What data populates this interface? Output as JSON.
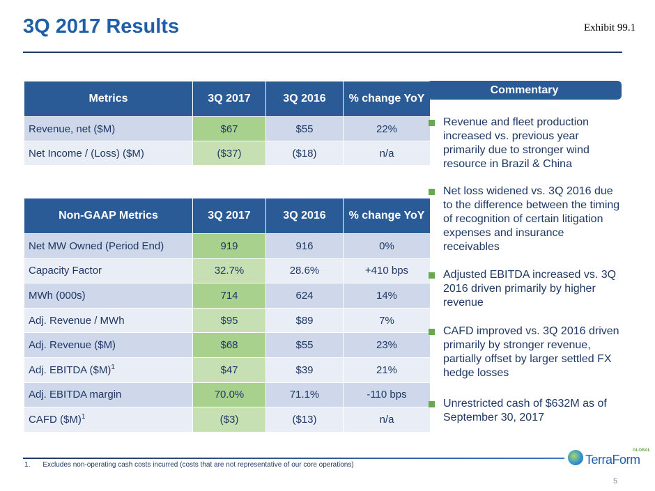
{
  "header": {
    "title": "3Q 2017 Results",
    "exhibit": "Exhibit 99.1"
  },
  "table1": {
    "header": [
      "Metrics",
      "3Q 2017",
      "3Q 2016",
      "% change YoY"
    ],
    "rows": [
      {
        "cells": [
          "Revenue, net ($M)",
          "$67",
          "$55",
          "22%"
        ]
      },
      {
        "cells": [
          "Net Income / (Loss) ($M)",
          "($37)",
          "($18)",
          "n/a"
        ]
      }
    ]
  },
  "table2": {
    "header": [
      "Non-GAAP Metrics",
      "3Q 2017",
      "3Q 2016",
      "% change YoY"
    ],
    "rows": [
      {
        "cells": [
          "Net MW Owned (Period End)",
          "919",
          "916",
          "0%"
        ]
      },
      {
        "cells": [
          "Capacity Factor",
          "32.7%",
          "28.6%",
          "+410 bps"
        ]
      },
      {
        "cells": [
          "MWh (000s)",
          "714",
          "624",
          "14%"
        ]
      },
      {
        "cells": [
          "Adj. Revenue / MWh",
          "$95",
          "$89",
          "7%"
        ]
      },
      {
        "cells": [
          "Adj. Revenue ($M)",
          "$68",
          "$55",
          "23%"
        ]
      },
      {
        "cells": [
          "Adj. EBITDA ($M)",
          "$47",
          "$39",
          "21%"
        ],
        "note": "1"
      },
      {
        "cells": [
          "Adj. EBITDA margin",
          "70.0%",
          "71.1%",
          "-110 bps"
        ]
      },
      {
        "cells": [
          "CAFD ($M)",
          "($3)",
          "($13)",
          "n/a"
        ],
        "note": "1"
      }
    ]
  },
  "commentary": {
    "heading": "Commentary",
    "bullets": [
      "Revenue and fleet production increased vs. previous year primarily due to stronger wind resource in Brazil & China",
      "Net loss widened vs. 3Q 2016 due to the difference between the timing of recognition of certain litigation expenses and insurance receivables",
      "Adjusted EBITDA increased vs. 3Q 2016 driven primarily by higher revenue",
      "CAFD improved vs. 3Q 2016 driven primarily by stronger revenue, partially offset by larger settled FX hedge losses",
      "Unrestricted cash of $632M as of September 30, 2017"
    ]
  },
  "footnote": {
    "number": "1.",
    "text": "Excludes non-operating cash costs incurred (costs that are not representative of our core operations)"
  },
  "logo": {
    "name": "TerraForm",
    "tag": "GLOBAL"
  },
  "page_number": "5"
}
